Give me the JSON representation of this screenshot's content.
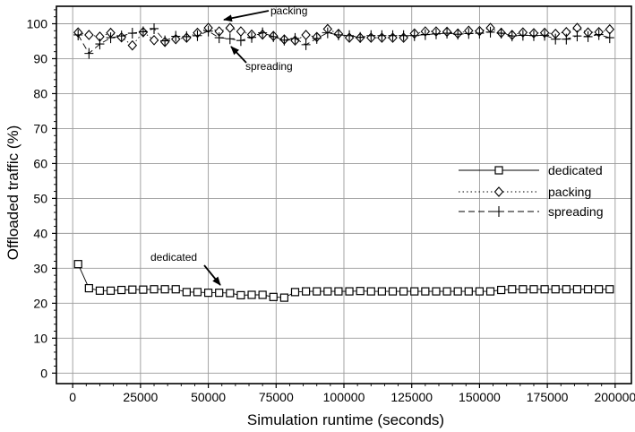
{
  "chart_data": {
    "type": "line",
    "title": "",
    "xlabel": "Simulation runtime (seconds)",
    "ylabel": "Offloaded traffic (%)",
    "xlim": [
      -6000,
      206000
    ],
    "ylim": [
      -3,
      105
    ],
    "xticks": [
      0,
      25000,
      50000,
      75000,
      100000,
      125000,
      150000,
      175000,
      200000
    ],
    "yticks": [
      0,
      10,
      20,
      30,
      40,
      50,
      60,
      70,
      80,
      90,
      100
    ],
    "grid": true,
    "legend_position": "right-middle",
    "series": [
      {
        "name": "dedicated",
        "line_style": "solid",
        "marker": "square",
        "x": [
          2000,
          6000,
          10000,
          14000,
          18000,
          22000,
          26000,
          30000,
          34000,
          38000,
          42000,
          46000,
          50000,
          54000,
          58000,
          62000,
          66000,
          70000,
          74000,
          78000,
          82000,
          86000,
          90000,
          94000,
          98000,
          102000,
          106000,
          110000,
          114000,
          118000,
          122000,
          126000,
          130000,
          134000,
          138000,
          142000,
          146000,
          150000,
          154000,
          158000,
          162000,
          166000,
          170000,
          174000,
          178000,
          182000,
          186000,
          190000,
          194000,
          198000
        ],
        "y": [
          31.2,
          24.3,
          23.6,
          23.6,
          23.8,
          23.9,
          23.9,
          24.0,
          24.0,
          24.0,
          23.2,
          23.2,
          23.0,
          23.0,
          22.9,
          22.3,
          22.4,
          22.4,
          21.8,
          21.6,
          23.2,
          23.4,
          23.4,
          23.4,
          23.4,
          23.4,
          23.5,
          23.4,
          23.4,
          23.4,
          23.4,
          23.4,
          23.4,
          23.4,
          23.4,
          23.4,
          23.4,
          23.4,
          23.4,
          23.8,
          24.0,
          24.0,
          24.0,
          24.0,
          24.0,
          24.0,
          24.0,
          24.0,
          24.0,
          24.0
        ]
      },
      {
        "name": "packing",
        "line_style": "dotted",
        "marker": "diamond",
        "x": [
          2000,
          6000,
          10000,
          14000,
          18000,
          22000,
          26000,
          30000,
          34000,
          38000,
          42000,
          46000,
          50000,
          54000,
          58000,
          62000,
          66000,
          70000,
          74000,
          78000,
          82000,
          86000,
          90000,
          94000,
          98000,
          102000,
          106000,
          110000,
          114000,
          118000,
          122000,
          126000,
          130000,
          134000,
          138000,
          142000,
          146000,
          150000,
          154000,
          158000,
          162000,
          166000,
          170000,
          174000,
          178000,
          182000,
          186000,
          190000,
          194000,
          198000
        ],
        "y": [
          97.5,
          96.8,
          96.3,
          97.4,
          96.1,
          93.8,
          97.6,
          95.3,
          94.8,
          95.6,
          96.0,
          97.4,
          98.8,
          97.8,
          98.8,
          97.8,
          96.9,
          96.9,
          96.5,
          95.5,
          95.2,
          96.8,
          96.2,
          98.5,
          97.1,
          96.0,
          96.0,
          96.0,
          96.0,
          96.0,
          96.0,
          97.2,
          97.8,
          97.8,
          97.7,
          97.2,
          98.0,
          97.9,
          98.8,
          97.4,
          96.8,
          97.5,
          97.3,
          97.4,
          97.1,
          97.6,
          98.8,
          97.5,
          97.6,
          98.4
        ]
      },
      {
        "name": "spreading",
        "line_style": "dashed",
        "marker": "plus",
        "x": [
          2000,
          6000,
          10000,
          14000,
          18000,
          22000,
          26000,
          30000,
          34000,
          38000,
          42000,
          46000,
          50000,
          54000,
          58000,
          62000,
          66000,
          70000,
          74000,
          78000,
          82000,
          86000,
          90000,
          94000,
          98000,
          102000,
          106000,
          110000,
          114000,
          118000,
          122000,
          126000,
          130000,
          134000,
          138000,
          142000,
          146000,
          150000,
          154000,
          158000,
          162000,
          166000,
          170000,
          174000,
          178000,
          182000,
          186000,
          190000,
          194000,
          198000
        ],
        "y": [
          96.8,
          91.5,
          94.2,
          96.0,
          96.5,
          97.3,
          97.7,
          98.6,
          95.1,
          96.4,
          96.3,
          96.6,
          97.9,
          96.0,
          95.7,
          95.2,
          96.1,
          97.4,
          96.3,
          95.3,
          95.8,
          94.0,
          95.8,
          97.4,
          96.8,
          96.6,
          96.1,
          96.6,
          96.6,
          96.6,
          96.6,
          96.6,
          96.9,
          97.1,
          97.3,
          97.0,
          97.2,
          97.3,
          97.6,
          97.3,
          96.5,
          96.7,
          96.6,
          96.7,
          95.6,
          95.6,
          96.5,
          96.3,
          96.9,
          96.0
        ]
      }
    ],
    "annotations": [
      {
        "text": "packing",
        "x": 72000,
        "y": 101.5,
        "target_x": 61000,
        "target_y": 98.8
      },
      {
        "text": "spreading",
        "x": 68000,
        "y": 89.5,
        "target_x": 58000,
        "target_y": 95.6
      },
      {
        "text": "dedicated",
        "x": 35000,
        "y": 31.5,
        "target_x": 53000,
        "target_y": 23.5
      }
    ]
  }
}
